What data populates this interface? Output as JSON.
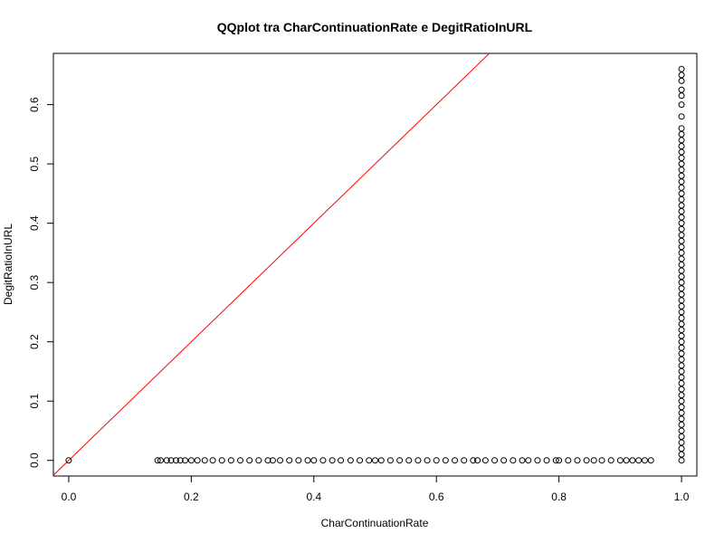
{
  "chart_data": {
    "type": "scatter",
    "title": "QQplot tra CharContinuationRate e DegitRatioInURL",
    "xlabel": "CharContinuationRate",
    "ylabel": "DegitRatioInURL",
    "xlim": [
      -0.025,
      1.025
    ],
    "ylim": [
      -0.0264,
      0.6864
    ],
    "x_ticks": [
      0.0,
      0.2,
      0.4,
      0.6,
      0.8,
      1.0
    ],
    "x_tick_labels": [
      "0.0",
      "0.2",
      "0.4",
      "0.6",
      "0.8",
      "1.0"
    ],
    "y_ticks": [
      0.0,
      0.1,
      0.2,
      0.3,
      0.4,
      0.5,
      0.6
    ],
    "y_tick_labels": [
      "0.0",
      "0.1",
      "0.2",
      "0.3",
      "0.4",
      "0.5",
      "0.6"
    ],
    "grid": false,
    "point_style": "open-circle",
    "reference_line": {
      "slope": 1,
      "intercept": 0,
      "color": "#ff0000"
    },
    "series": [
      {
        "points": [
          [
            0.0,
            0.0
          ],
          [
            0.145,
            0.0
          ],
          [
            0.15,
            0.0
          ],
          [
            0.16,
            0.0
          ],
          [
            0.167,
            0.0
          ],
          [
            0.175,
            0.0
          ],
          [
            0.182,
            0.0
          ],
          [
            0.19,
            0.0
          ],
          [
            0.2,
            0.0
          ],
          [
            0.21,
            0.0
          ],
          [
            0.222,
            0.0
          ],
          [
            0.235,
            0.0
          ],
          [
            0.25,
            0.0
          ],
          [
            0.265,
            0.0
          ],
          [
            0.28,
            0.0
          ],
          [
            0.295,
            0.0
          ],
          [
            0.31,
            0.0
          ],
          [
            0.325,
            0.0
          ],
          [
            0.333,
            0.0
          ],
          [
            0.345,
            0.0
          ],
          [
            0.36,
            0.0
          ],
          [
            0.375,
            0.0
          ],
          [
            0.39,
            0.0
          ],
          [
            0.4,
            0.0
          ],
          [
            0.415,
            0.0
          ],
          [
            0.43,
            0.0
          ],
          [
            0.444,
            0.0
          ],
          [
            0.46,
            0.0
          ],
          [
            0.475,
            0.0
          ],
          [
            0.49,
            0.0
          ],
          [
            0.5,
            0.0
          ],
          [
            0.51,
            0.0
          ],
          [
            0.525,
            0.0
          ],
          [
            0.54,
            0.0
          ],
          [
            0.555,
            0.0
          ],
          [
            0.57,
            0.0
          ],
          [
            0.585,
            0.0
          ],
          [
            0.6,
            0.0
          ],
          [
            0.615,
            0.0
          ],
          [
            0.63,
            0.0
          ],
          [
            0.645,
            0.0
          ],
          [
            0.66,
            0.0
          ],
          [
            0.667,
            0.0
          ],
          [
            0.68,
            0.0
          ],
          [
            0.695,
            0.0
          ],
          [
            0.71,
            0.0
          ],
          [
            0.725,
            0.0
          ],
          [
            0.74,
            0.0
          ],
          [
            0.75,
            0.0
          ],
          [
            0.765,
            0.0
          ],
          [
            0.78,
            0.0
          ],
          [
            0.795,
            0.0
          ],
          [
            0.8,
            0.0
          ],
          [
            0.815,
            0.0
          ],
          [
            0.83,
            0.0
          ],
          [
            0.845,
            0.0
          ],
          [
            0.857,
            0.0
          ],
          [
            0.87,
            0.0
          ],
          [
            0.885,
            0.0
          ],
          [
            0.9,
            0.0
          ],
          [
            0.91,
            0.0
          ],
          [
            0.92,
            0.0
          ],
          [
            0.93,
            0.0
          ],
          [
            0.94,
            0.0
          ],
          [
            0.95,
            0.0
          ],
          [
            1.0,
            0.0
          ],
          [
            1.0,
            0.01
          ],
          [
            1.0,
            0.02
          ],
          [
            1.0,
            0.03
          ],
          [
            1.0,
            0.04
          ],
          [
            1.0,
            0.05
          ],
          [
            1.0,
            0.06
          ],
          [
            1.0,
            0.07
          ],
          [
            1.0,
            0.08
          ],
          [
            1.0,
            0.09
          ],
          [
            1.0,
            0.1
          ],
          [
            1.0,
            0.11
          ],
          [
            1.0,
            0.12
          ],
          [
            1.0,
            0.13
          ],
          [
            1.0,
            0.14
          ],
          [
            1.0,
            0.15
          ],
          [
            1.0,
            0.16
          ],
          [
            1.0,
            0.17
          ],
          [
            1.0,
            0.18
          ],
          [
            1.0,
            0.19
          ],
          [
            1.0,
            0.2
          ],
          [
            1.0,
            0.21
          ],
          [
            1.0,
            0.22
          ],
          [
            1.0,
            0.23
          ],
          [
            1.0,
            0.24
          ],
          [
            1.0,
            0.25
          ],
          [
            1.0,
            0.26
          ],
          [
            1.0,
            0.27
          ],
          [
            1.0,
            0.28
          ],
          [
            1.0,
            0.29
          ],
          [
            1.0,
            0.3
          ],
          [
            1.0,
            0.31
          ],
          [
            1.0,
            0.32
          ],
          [
            1.0,
            0.33
          ],
          [
            1.0,
            0.34
          ],
          [
            1.0,
            0.35
          ],
          [
            1.0,
            0.36
          ],
          [
            1.0,
            0.37
          ],
          [
            1.0,
            0.38
          ],
          [
            1.0,
            0.39
          ],
          [
            1.0,
            0.4
          ],
          [
            1.0,
            0.41
          ],
          [
            1.0,
            0.42
          ],
          [
            1.0,
            0.43
          ],
          [
            1.0,
            0.44
          ],
          [
            1.0,
            0.45
          ],
          [
            1.0,
            0.46
          ],
          [
            1.0,
            0.47
          ],
          [
            1.0,
            0.48
          ],
          [
            1.0,
            0.49
          ],
          [
            1.0,
            0.5
          ],
          [
            1.0,
            0.51
          ],
          [
            1.0,
            0.52
          ],
          [
            1.0,
            0.53
          ],
          [
            1.0,
            0.54
          ],
          [
            1.0,
            0.55
          ],
          [
            1.0,
            0.56
          ],
          [
            1.0,
            0.58
          ],
          [
            1.0,
            0.6
          ],
          [
            1.0,
            0.615
          ],
          [
            1.0,
            0.625
          ],
          [
            1.0,
            0.64
          ],
          [
            1.0,
            0.65
          ],
          [
            1.0,
            0.66
          ]
        ]
      }
    ]
  }
}
